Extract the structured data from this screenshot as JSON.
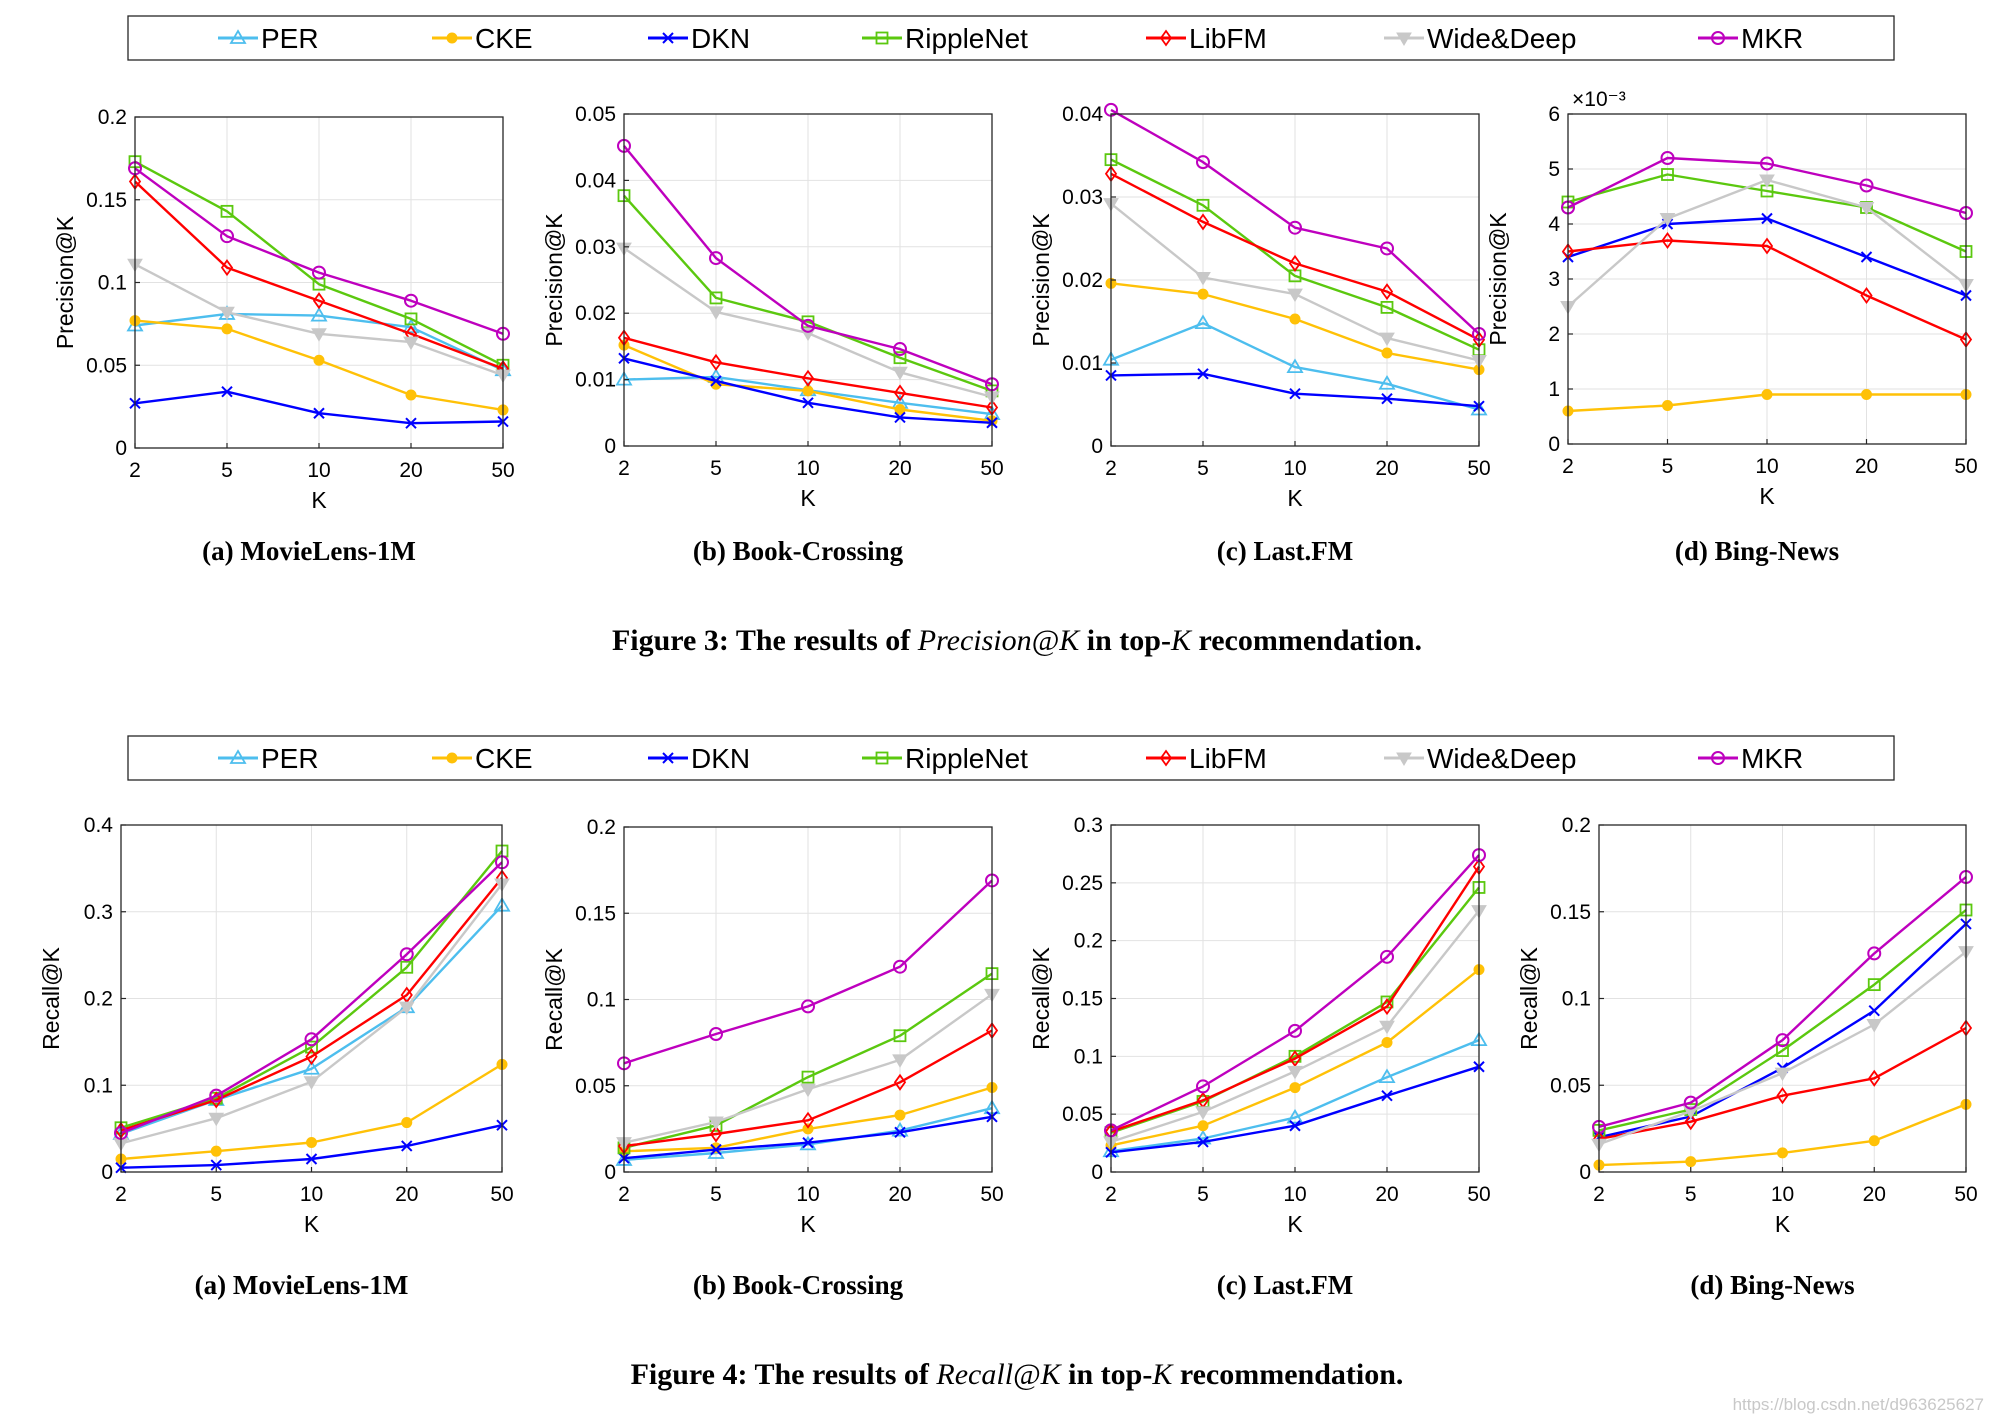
{
  "series_styles": [
    {
      "name": "PER",
      "color": "#4DBEEE",
      "marker": "triangle-up"
    },
    {
      "name": "CKE",
      "color": "#FFC107",
      "marker": "circle-filled"
    },
    {
      "name": "DKN",
      "color": "#0000FF",
      "marker": "x"
    },
    {
      "name": "RippleNet",
      "color": "#5BC80F",
      "marker": "square"
    },
    {
      "name": "LibFM",
      "color": "#FF0000",
      "marker": "diamond"
    },
    {
      "name": "Wide&Deep",
      "color": "#C8C8C8",
      "marker": "triangle-down-filled"
    },
    {
      "name": "MKR",
      "color": "#BE00BE",
      "marker": "circle-open"
    }
  ],
  "figures": [
    {
      "caption_prefix": "Figure 3: The results of ",
      "caption_metric": "Precision@K",
      "caption_mid": " in top-",
      "caption_k": "K",
      "caption_suffix": " recommendation."
    },
    {
      "caption_prefix": "Figure 4: The results of ",
      "caption_metric": "Recall@K",
      "caption_mid": " in top-",
      "caption_k": "K",
      "caption_suffix": " recommendation."
    }
  ],
  "watermark": "https://blog.csdn.net/d963625627",
  "chart_data": [
    {
      "type": "line",
      "figure": 0,
      "subcaption": "(a) MovieLens-1M",
      "xlabel": "K",
      "ylabel": "Precision@K",
      "categories": [
        "2",
        "5",
        "10",
        "20",
        "50"
      ],
      "ylim": [
        0,
        0.2
      ],
      "yticks": [
        [
          0,
          "0"
        ],
        [
          0.05,
          "0.05"
        ],
        [
          0.1,
          "0.1"
        ],
        [
          0.15,
          "0.15"
        ],
        [
          0.2,
          "0.2"
        ]
      ],
      "exponent": "",
      "series": [
        {
          "name": "PER",
          "values": [
            0.074,
            0.081,
            0.08,
            0.073,
            0.047
          ]
        },
        {
          "name": "CKE",
          "values": [
            0.077,
            0.072,
            0.053,
            0.032,
            0.023
          ]
        },
        {
          "name": "DKN",
          "values": [
            0.027,
            0.034,
            0.021,
            0.015,
            0.016
          ]
        },
        {
          "name": "RippleNet",
          "values": [
            0.173,
            0.143,
            0.099,
            0.078,
            0.05
          ]
        },
        {
          "name": "LibFM",
          "values": [
            0.161,
            0.109,
            0.089,
            0.069,
            0.048
          ]
        },
        {
          "name": "Wide&Deep",
          "values": [
            0.111,
            0.082,
            0.069,
            0.064,
            0.044
          ]
        },
        {
          "name": "MKR",
          "values": [
            0.169,
            0.128,
            0.106,
            0.089,
            0.069
          ]
        }
      ]
    },
    {
      "type": "line",
      "figure": 0,
      "subcaption": "(b) Book-Crossing",
      "xlabel": "K",
      "ylabel": "Precision@K",
      "categories": [
        "2",
        "5",
        "10",
        "20",
        "50"
      ],
      "ylim": [
        0,
        0.05
      ],
      "yticks": [
        [
          0,
          "0"
        ],
        [
          0.01,
          "0.01"
        ],
        [
          0.02,
          "0.02"
        ],
        [
          0.03,
          "0.03"
        ],
        [
          0.04,
          "0.04"
        ],
        [
          0.05,
          "0.05"
        ]
      ],
      "exponent": "",
      "series": [
        {
          "name": "PER",
          "values": [
            0.01,
            0.0104,
            0.0084,
            0.0065,
            0.0048
          ]
        },
        {
          "name": "CKE",
          "values": [
            0.0152,
            0.0093,
            0.0083,
            0.0055,
            0.0038
          ]
        },
        {
          "name": "DKN",
          "values": [
            0.0132,
            0.0098,
            0.0065,
            0.0043,
            0.0035
          ]
        },
        {
          "name": "RippleNet",
          "values": [
            0.0377,
            0.0223,
            0.0187,
            0.0133,
            0.0083
          ]
        },
        {
          "name": "LibFM",
          "values": [
            0.0163,
            0.0126,
            0.0102,
            0.008,
            0.0058
          ]
        },
        {
          "name": "Wide&Deep",
          "values": [
            0.0298,
            0.0202,
            0.017,
            0.0111,
            0.0074
          ]
        },
        {
          "name": "MKR",
          "values": [
            0.0452,
            0.0283,
            0.0181,
            0.0146,
            0.0093
          ]
        }
      ]
    },
    {
      "type": "line",
      "figure": 0,
      "subcaption": "(c) Last.FM",
      "xlabel": "K",
      "ylabel": "Precision@K",
      "categories": [
        "2",
        "5",
        "10",
        "20",
        "50"
      ],
      "ylim": [
        0,
        0.04
      ],
      "yticks": [
        [
          0,
          "0"
        ],
        [
          0.01,
          "0.01"
        ],
        [
          0.02,
          "0.02"
        ],
        [
          0.03,
          "0.03"
        ],
        [
          0.04,
          "0.04"
        ]
      ],
      "exponent": "",
      "series": [
        {
          "name": "PER",
          "values": [
            0.0104,
            0.0148,
            0.0095,
            0.0075,
            0.0044
          ]
        },
        {
          "name": "CKE",
          "values": [
            0.0196,
            0.0183,
            0.0153,
            0.0112,
            0.0092
          ]
        },
        {
          "name": "DKN",
          "values": [
            0.0085,
            0.0087,
            0.0063,
            0.0057,
            0.0048
          ]
        },
        {
          "name": "RippleNet",
          "values": [
            0.0345,
            0.029,
            0.0205,
            0.0167,
            0.0116
          ]
        },
        {
          "name": "LibFM",
          "values": [
            0.0328,
            0.027,
            0.022,
            0.0186,
            0.0128
          ]
        },
        {
          "name": "Wide&Deep",
          "values": [
            0.0292,
            0.0203,
            0.0183,
            0.013,
            0.0103
          ]
        },
        {
          "name": "MKR",
          "values": [
            0.0405,
            0.0342,
            0.0263,
            0.0238,
            0.0135
          ]
        }
      ]
    },
    {
      "type": "line",
      "figure": 0,
      "subcaption": "(d) Bing-News",
      "xlabel": "K",
      "ylabel": "Precision@K",
      "categories": [
        "2",
        "5",
        "10",
        "20",
        "50"
      ],
      "ylim": [
        0,
        6
      ],
      "yticks": [
        [
          0,
          "0"
        ],
        [
          1,
          "1"
        ],
        [
          2,
          "2"
        ],
        [
          3,
          "3"
        ],
        [
          4,
          "4"
        ],
        [
          5,
          "5"
        ],
        [
          6,
          "6"
        ]
      ],
      "exponent": "×10⁻³",
      "series": [
        {
          "name": "CKE",
          "values": [
            0.6,
            0.7,
            0.9,
            0.9,
            0.9
          ]
        },
        {
          "name": "DKN",
          "values": [
            3.4,
            4.0,
            4.1,
            3.4,
            2.7
          ]
        },
        {
          "name": "RippleNet",
          "values": [
            4.4,
            4.9,
            4.6,
            4.3,
            3.5
          ]
        },
        {
          "name": "LibFM",
          "values": [
            3.5,
            3.7,
            3.6,
            2.7,
            1.9
          ]
        },
        {
          "name": "Wide&Deep",
          "values": [
            2.5,
            4.1,
            4.8,
            4.3,
            2.9
          ]
        },
        {
          "name": "MKR",
          "values": [
            4.3,
            5.2,
            5.1,
            4.7,
            4.2
          ]
        }
      ]
    },
    {
      "type": "line",
      "figure": 1,
      "subcaption": "(a) MovieLens-1M",
      "xlabel": "K",
      "ylabel": "Recall@K",
      "categories": [
        "2",
        "5",
        "10",
        "20",
        "50"
      ],
      "ylim": [
        0,
        0.4
      ],
      "yticks": [
        [
          0,
          "0"
        ],
        [
          0.1,
          "0.1"
        ],
        [
          0.2,
          "0.2"
        ],
        [
          0.3,
          "0.3"
        ],
        [
          0.4,
          "0.4"
        ]
      ],
      "exponent": "",
      "series": [
        {
          "name": "PER",
          "values": [
            0.044,
            0.083,
            0.119,
            0.19,
            0.307
          ]
        },
        {
          "name": "CKE",
          "values": [
            0.015,
            0.024,
            0.034,
            0.057,
            0.124
          ]
        },
        {
          "name": "DKN",
          "values": [
            0.005,
            0.008,
            0.015,
            0.03,
            0.054
          ]
        },
        {
          "name": "RippleNet",
          "values": [
            0.051,
            0.085,
            0.144,
            0.236,
            0.37
          ]
        },
        {
          "name": "LibFM",
          "values": [
            0.048,
            0.083,
            0.133,
            0.204,
            0.339
          ]
        },
        {
          "name": "Wide&Deep",
          "values": [
            0.033,
            0.062,
            0.104,
            0.19,
            0.332
          ]
        },
        {
          "name": "MKR",
          "values": [
            0.045,
            0.088,
            0.153,
            0.251,
            0.357
          ]
        }
      ]
    },
    {
      "type": "line",
      "figure": 1,
      "subcaption": "(b) Book-Crossing",
      "xlabel": "K",
      "ylabel": "Recall@K",
      "categories": [
        "2",
        "5",
        "10",
        "20",
        "50"
      ],
      "ylim": [
        0,
        0.2
      ],
      "yticks": [
        [
          0,
          "0"
        ],
        [
          0.05,
          "0.05"
        ],
        [
          0.1,
          "0.1"
        ],
        [
          0.15,
          "0.15"
        ],
        [
          0.2,
          "0.2"
        ]
      ],
      "exponent": "",
      "series": [
        {
          "name": "PER",
          "values": [
            0.007,
            0.011,
            0.016,
            0.024,
            0.037
          ]
        },
        {
          "name": "CKE",
          "values": [
            0.012,
            0.014,
            0.025,
            0.033,
            0.049
          ]
        },
        {
          "name": "DKN",
          "values": [
            0.008,
            0.013,
            0.017,
            0.023,
            0.032
          ]
        },
        {
          "name": "RippleNet",
          "values": [
            0.014,
            0.027,
            0.055,
            0.079,
            0.115
          ]
        },
        {
          "name": "LibFM",
          "values": [
            0.015,
            0.022,
            0.03,
            0.052,
            0.082
          ]
        },
        {
          "name": "Wide&Deep",
          "values": [
            0.017,
            0.029,
            0.048,
            0.065,
            0.103
          ]
        },
        {
          "name": "MKR",
          "values": [
            0.063,
            0.08,
            0.096,
            0.119,
            0.169
          ]
        }
      ]
    },
    {
      "type": "line",
      "figure": 1,
      "subcaption": "(c) Last.FM",
      "xlabel": "K",
      "ylabel": "Recall@K",
      "categories": [
        "2",
        "5",
        "10",
        "20",
        "50"
      ],
      "ylim": [
        0,
        0.3
      ],
      "yticks": [
        [
          0,
          "0"
        ],
        [
          0.05,
          "0.05"
        ],
        [
          0.1,
          "0.1"
        ],
        [
          0.15,
          "0.15"
        ],
        [
          0.2,
          "0.2"
        ],
        [
          0.25,
          "0.25"
        ],
        [
          0.3,
          "0.3"
        ]
      ],
      "exponent": "",
      "series": [
        {
          "name": "PER",
          "values": [
            0.018,
            0.029,
            0.047,
            0.082,
            0.114
          ]
        },
        {
          "name": "CKE",
          "values": [
            0.023,
            0.04,
            0.073,
            0.112,
            0.175
          ]
        },
        {
          "name": "DKN",
          "values": [
            0.017,
            0.026,
            0.04,
            0.066,
            0.091
          ]
        },
        {
          "name": "RippleNet",
          "values": [
            0.034,
            0.061,
            0.1,
            0.147,
            0.246
          ]
        },
        {
          "name": "LibFM",
          "values": [
            0.035,
            0.062,
            0.098,
            0.143,
            0.264
          ]
        },
        {
          "name": "Wide&Deep",
          "values": [
            0.026,
            0.052,
            0.087,
            0.126,
            0.226
          ]
        },
        {
          "name": "MKR",
          "values": [
            0.036,
            0.074,
            0.122,
            0.186,
            0.274
          ]
        }
      ]
    },
    {
      "type": "line",
      "figure": 1,
      "subcaption": "(d) Bing-News",
      "xlabel": "K",
      "ylabel": "Recall@K",
      "categories": [
        "2",
        "5",
        "10",
        "20",
        "50"
      ],
      "ylim": [
        0,
        0.2
      ],
      "yticks": [
        [
          0,
          "0"
        ],
        [
          0.05,
          "0.05"
        ],
        [
          0.1,
          "0.1"
        ],
        [
          0.15,
          "0.15"
        ],
        [
          0.2,
          "0.2"
        ]
      ],
      "exponent": "",
      "series": [
        {
          "name": "CKE",
          "values": [
            0.004,
            0.006,
            0.011,
            0.018,
            0.039
          ]
        },
        {
          "name": "DKN",
          "values": [
            0.02,
            0.032,
            0.06,
            0.093,
            0.143
          ]
        },
        {
          "name": "RippleNet",
          "values": [
            0.024,
            0.036,
            0.07,
            0.108,
            0.151
          ]
        },
        {
          "name": "LibFM",
          "values": [
            0.019,
            0.029,
            0.044,
            0.054,
            0.083
          ]
        },
        {
          "name": "Wide&Deep",
          "values": [
            0.016,
            0.035,
            0.057,
            0.085,
            0.127
          ]
        },
        {
          "name": "MKR",
          "values": [
            0.026,
            0.04,
            0.076,
            0.126,
            0.17
          ]
        }
      ]
    }
  ]
}
